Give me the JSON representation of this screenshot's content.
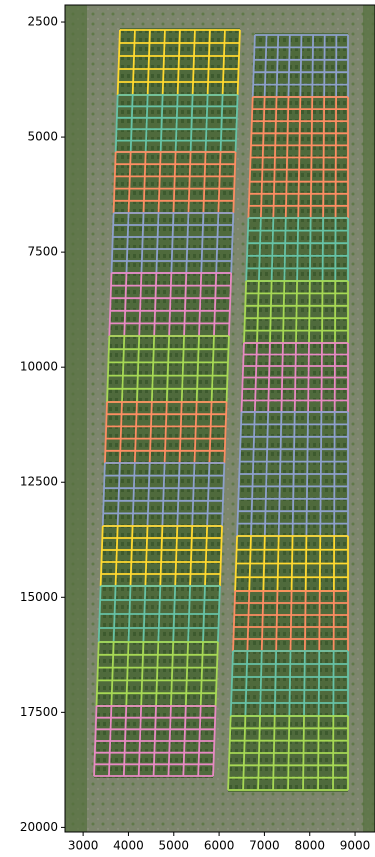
{
  "chart_data": {
    "type": "image",
    "xlim": [
      2600,
      9440
    ],
    "ylim": [
      20100,
      2130
    ],
    "xticks": [
      3000,
      4000,
      5000,
      6000,
      7000,
      8000,
      9000
    ],
    "yticks": [
      2500,
      5000,
      7500,
      10000,
      12500,
      15000,
      17500,
      20000
    ]
  }
}
